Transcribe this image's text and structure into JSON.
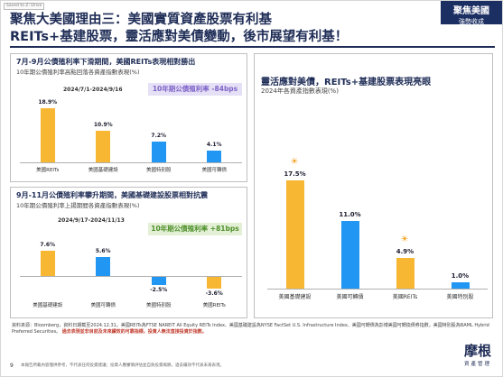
{
  "saved_tag": "Saved to Z: Drive",
  "header": {
    "title_line1": "聚焦大美國理由三：美國實質資產股票有利基",
    "title_line2": "REITs+基建股票，靈活應對美債變動，後市展望有利基！",
    "tag_line1": "聚焦美國",
    "tag_line2": "強勢收成"
  },
  "panel_top_left": {
    "title": "7月-9月公債殖利率下滑期間，美國REITs表現相對勝出",
    "subtitle": "10年期公債殖利率高點回落各資產指數表現(%)",
    "period": "2024/7/1-2024/9/16",
    "badge": "10年期公債殖利率 -84bps",
    "badge_bg": "#e5e0f5",
    "badge_color": "#7f63c9"
  },
  "panel_bottom_left": {
    "title": "9月-11月公債殖利率攀升期間，美國基礎建設股票相對抗震",
    "subtitle": "10年期公債殖利率上揚期間各資產指數表現(%)",
    "period": "2024/9/17-2024/11/13",
    "badge": "10年期公債殖利率 +81bps",
    "badge_bg": "#e3f0d6",
    "badge_color": "#4e8f2a"
  },
  "panel_right": {
    "title": "靈活應對美債，REITs+基建股票表現亮眼",
    "subtitle": "2024年各資產指數表現(%)"
  },
  "chart_data": [
    {
      "type": "bar",
      "title": "7月-9月公債殖利率下滑期間，美國REITs表現相對勝出",
      "categories": [
        "美國REITs",
        "美國基礎建設",
        "美國特別股",
        "美國可轉債"
      ],
      "values": [
        18.9,
        10.9,
        7.2,
        4.1
      ],
      "value_labels": [
        "18.9%",
        "10.9%",
        "7.2%",
        "4.1%"
      ],
      "colors": [
        "#f7b733",
        "#f7b733",
        "#2196f3",
        "#2196f3"
      ]
    },
    {
      "type": "bar",
      "title": "9月-11月公債殖利率攀升期間，美國基礎建設股票相對抗震",
      "categories": [
        "美國基礎建設",
        "美國可轉債",
        "美國特別股",
        "美國REITs"
      ],
      "values": [
        7.6,
        5.6,
        -2.5,
        -3.6
      ],
      "value_labels": [
        "7.6%",
        "5.6%",
        "-2.5%",
        "-3.6%"
      ],
      "colors": [
        "#f7b733",
        "#2196f3",
        "#2196f3",
        "#f7b733"
      ]
    },
    {
      "type": "bar",
      "title": "靈活應對美債，REITs+基建股票表現亮眼",
      "categories": [
        "美國基礎建設",
        "美國可轉債",
        "美國REITs",
        "美國特別股"
      ],
      "values": [
        17.5,
        11.0,
        4.9,
        1.0
      ],
      "value_labels": [
        "17.5%",
        "11.0%",
        "4.9%",
        "1.0%"
      ],
      "colors": [
        "#f7b733",
        "#2196f3",
        "#f7b733",
        "#2196f3"
      ],
      "highlight_icons": [
        "sun-icon",
        "",
        "sun-icon",
        ""
      ]
    }
  ],
  "source_text": "資料來源：Bloomberg，資料日期截至2024.12.31。美國REITs為FTSE NAREIT All Equity REITs Index、美國基礎建設為NYSE FactSet U.S. Infrastructure Index、美國可轉債為彭博美國可轉換債券指數，美國特別股為BAML Hybrid Preferred Securities。",
  "source_warning": "過去表現並非目前及未來績效的可靠指標，投資人無法直接投資於指數。",
  "page_number": "9",
  "disclaimer": "本報告所載內容僅供參考，不代表任何投資建議；投資人應審慎評估並自負投資風險，過去績效不代表未來表現。",
  "logo": {
    "big": "摩根",
    "small": "資產管理"
  }
}
